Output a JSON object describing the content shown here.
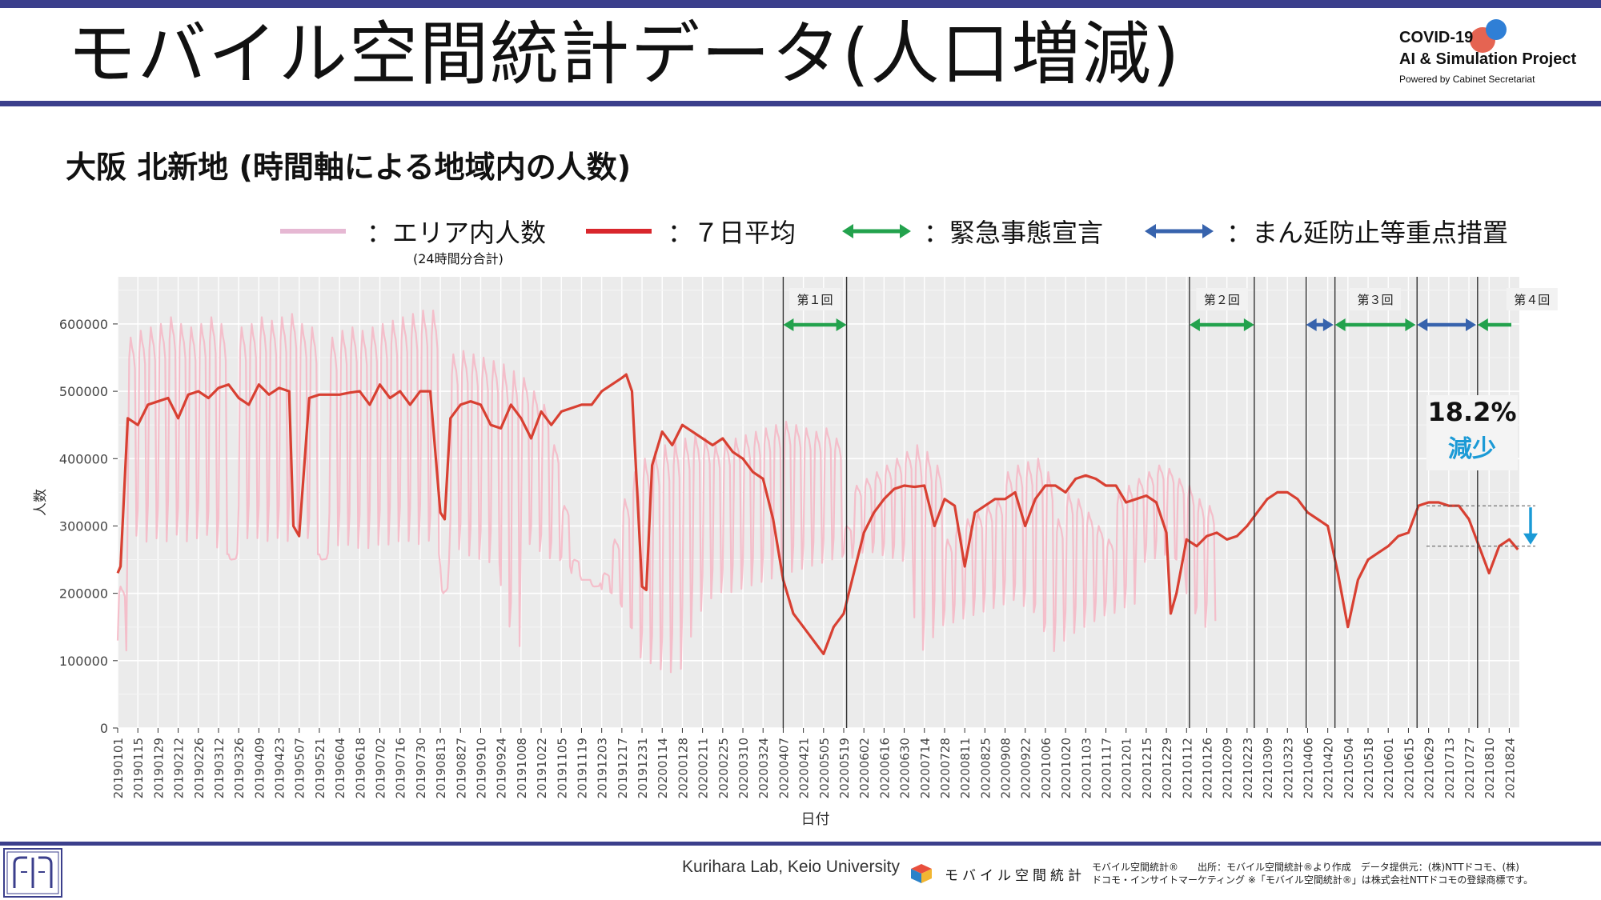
{
  "header": {
    "title": "モバイル空間統計データ(人口増減)",
    "brand_line1": "COVID-19",
    "brand_line2": "AI & Simulation Project",
    "brand_line3": "Powered by Cabinet Secretariat"
  },
  "subtitle": "大阪 北新地 (時間軸による地域内の人数)",
  "legend": {
    "items": [
      {
        "label": "：エリア内人数",
        "note": "(24時間分合計)",
        "color": "#e6b8d3"
      },
      {
        "label": "：７日平均",
        "color": "#d9262c"
      },
      {
        "label": "：緊急事態宣言",
        "color": "#23a24d"
      },
      {
        "label": "：まん延防止等重点措置",
        "color": "#3763ad"
      }
    ]
  },
  "annotation": {
    "percent": "18.2%",
    "label": "減少"
  },
  "footer": {
    "lab": "Kurihara Lab, Keio University",
    "logo_text": "モバイル空間統計",
    "note_line1": "モバイル空間統計®　　出所：モバイル空間統計®より作成　データ提供元：(株)NTTドコモ、(株)",
    "note_line2": "ドコモ・インサイトマーケティング ※「モバイル空間統計®」は株式会社NTTドコモの登録商標です。"
  },
  "colors": {
    "daily": "#f6b6c4",
    "avg": "#d84032",
    "emergency": "#23a24d",
    "priority": "#3763ad",
    "accent_blue": "#1b9ad6",
    "brand_navy": "#3b3f8c"
  },
  "chart_data": {
    "type": "line",
    "xlabel": "日付",
    "ylabel": "人数",
    "ylim": [
      0,
      670000
    ],
    "yticks": [
      0,
      100000,
      200000,
      300000,
      400000,
      500000,
      600000
    ],
    "ytick_labels": [
      "0",
      "100000",
      "200000",
      "300000",
      "400000",
      "500000",
      "600000"
    ],
    "grid": true,
    "x_start": "20190101",
    "x_end": "20210831",
    "xtick_labels": [
      "20190101",
      "20190115",
      "20190129",
      "20190212",
      "20190226",
      "20190312",
      "20190326",
      "20190409",
      "20190423",
      "20190507",
      "20190521",
      "20190604",
      "20190618",
      "20190702",
      "20190716",
      "20190730",
      "20190813",
      "20190827",
      "20190910",
      "20190924",
      "20191008",
      "20191022",
      "20191105",
      "20191119",
      "20191203",
      "20191217",
      "20191231",
      "20200114",
      "20200128",
      "20200211",
      "20200225",
      "20200310",
      "20200324",
      "20200407",
      "20200421",
      "20200505",
      "20200519",
      "20200602",
      "20200616",
      "20200630",
      "20200714",
      "20200728",
      "20200811",
      "20200825",
      "20200908",
      "20200922",
      "20201006",
      "20201020",
      "20201103",
      "20201117",
      "20201201",
      "20201215",
      "20201229",
      "20210112",
      "20210126",
      "20210209",
      "20210223",
      "20210309",
      "20210323",
      "20210406",
      "20210420",
      "20210504",
      "20210518",
      "20210601",
      "20210615",
      "20210629",
      "20210713",
      "20210727",
      "20210810",
      "20210824"
    ],
    "series": [
      {
        "name": "７日平均",
        "x": [
          "20190101",
          "20190103",
          "20190108",
          "20190115",
          "20190122",
          "20190129",
          "20190205",
          "20190212",
          "20190219",
          "20190226",
          "20190305",
          "20190312",
          "20190319",
          "20190326",
          "20190402",
          "20190409",
          "20190416",
          "20190423",
          "20190430",
          "20190503",
          "20190507",
          "20190514",
          "20190521",
          "20190528",
          "20190604",
          "20190611",
          "20190618",
          "20190625",
          "20190702",
          "20190709",
          "20190716",
          "20190723",
          "20190730",
          "20190806",
          "20190813",
          "20190816",
          "20190820",
          "20190827",
          "20190903",
          "20190910",
          "20190917",
          "20190924",
          "20191001",
          "20191008",
          "20191015",
          "20191022",
          "20191029",
          "20191105",
          "20191112",
          "20191119",
          "20191126",
          "20191203",
          "20191210",
          "20191217",
          "20191220",
          "20191224",
          "20191231",
          "20200103",
          "20200107",
          "20200114",
          "20200121",
          "20200128",
          "20200204",
          "20200211",
          "20200218",
          "20200225",
          "20200303",
          "20200310",
          "20200317",
          "20200324",
          "20200331",
          "20200407",
          "20200414",
          "20200421",
          "20200428",
          "20200505",
          "20200512",
          "20200519",
          "20200526",
          "20200602",
          "20200609",
          "20200616",
          "20200623",
          "20200630",
          "20200707",
          "20200714",
          "20200721",
          "20200728",
          "20200804",
          "20200811",
          "20200818",
          "20200825",
          "20200901",
          "20200908",
          "20200915",
          "20200922",
          "20200929",
          "20201006",
          "20201013",
          "20201020",
          "20201027",
          "20201103",
          "20201110",
          "20201117",
          "20201124",
          "20201201",
          "20201208",
          "20201215",
          "20201222",
          "20201229",
          "20210101",
          "20210105",
          "20210112",
          "20210119",
          "20210126",
          "20210202",
          "20210209",
          "20210216",
          "20210223",
          "20210302",
          "20210309",
          "20210316",
          "20210323",
          "20210330",
          "20210406",
          "20210413",
          "20210420",
          "20210427",
          "20210504",
          "20210511",
          "20210518",
          "20210525",
          "20210601",
          "20210608",
          "20210615",
          "20210622",
          "20210629",
          "20210706",
          "20210713",
          "20210720",
          "20210727",
          "20210803",
          "20210810",
          "20210817",
          "20210824",
          "20210830"
        ],
        "y": [
          230000,
          240000,
          460000,
          450000,
          480000,
          485000,
          490000,
          460000,
          495000,
          500000,
          490000,
          505000,
          510000,
          490000,
          480000,
          510000,
          495000,
          505000,
          500000,
          300000,
          285000,
          490000,
          495000,
          495000,
          495000,
          498000,
          500000,
          480000,
          510000,
          490000,
          500000,
          480000,
          500000,
          500000,
          320000,
          310000,
          460000,
          480000,
          485000,
          480000,
          450000,
          445000,
          480000,
          460000,
          430000,
          470000,
          450000,
          470000,
          475000,
          480000,
          480000,
          500000,
          510000,
          520000,
          525000,
          500000,
          210000,
          205000,
          390000,
          440000,
          420000,
          450000,
          440000,
          430000,
          420000,
          430000,
          410000,
          400000,
          380000,
          370000,
          310000,
          220000,
          170000,
          150000,
          130000,
          110000,
          150000,
          170000,
          230000,
          290000,
          320000,
          340000,
          355000,
          360000,
          358000,
          360000,
          300000,
          340000,
          330000,
          240000,
          320000,
          330000,
          340000,
          340000,
          350000,
          300000,
          340000,
          360000,
          360000,
          350000,
          370000,
          375000,
          370000,
          360000,
          360000,
          335000,
          340000,
          345000,
          335000,
          290000,
          170000,
          200000,
          280000,
          270000,
          285000,
          290000,
          280000,
          285000,
          300000,
          320000,
          340000,
          350000,
          350000,
          340000,
          320000,
          310000,
          300000,
          230000,
          150000,
          220000,
          250000,
          260000,
          270000,
          285000,
          290000,
          330000,
          335000,
          335000,
          330000,
          330000,
          310000,
          270000,
          230000,
          270000,
          280000,
          265000
        ]
      },
      {
        "name": "エリア内人数",
        "weekly_low": [
          110000,
          270000,
          260000,
          265000,
          260000,
          270000,
          260000,
          265000,
          270000,
          250000,
          240000,
          260000,
          265000,
          265000,
          260000,
          265000,
          260000,
          270000,
          265000,
          240000,
          260000,
          255000,
          255000,
          250000,
          250000,
          255000,
          255000,
          260000,
          260000,
          255000,
          260000,
          240000,
          250000,
          250000,
          240000,
          235000,
          230000,
          230000,
          130000,
          100000,
          260000,
          250000,
          240000,
          240000,
          235000,
          225000,
          220000,
          215000,
          200000,
          180000,
          140000,
          90000,
          80000,
          70000,
          65000,
          70000,
          120000,
          160000,
          180000,
          190000,
          190000,
          195000,
          200000,
          205000,
          210000,
          215000,
          220000,
          225000,
          230000,
          235000,
          240000,
          245000,
          250000,
          255000,
          255000,
          250000,
          245000,
          240000,
          240000,
          100000,
          120000,
          140000,
          150000,
          155000,
          160000,
          165000,
          170000,
          175000,
          180000,
          170000,
          160000,
          130000,
          100000,
          120000,
          130000,
          140000,
          150000,
          160000,
          165000,
          170000,
          175000,
          240000,
          245000,
          250000,
          245000,
          220000,
          160000,
          140000,
          150000
        ],
        "weekly_high": [
          210000,
          580000,
          590000,
          595000,
          600000,
          610000,
          600000,
          595000,
          600000,
          610000,
          600000,
          250000,
          595000,
          600000,
          610000,
          605000,
          610000,
          615000,
          600000,
          595000,
          250000,
          580000,
          590000,
          595000,
          590000,
          595000,
          600000,
          605000,
          610000,
          615000,
          620000,
          620000,
          200000,
          555000,
          560000,
          555000,
          550000,
          545000,
          540000,
          530000,
          520000,
          500000,
          480000,
          420000,
          330000,
          250000,
          220000,
          210000,
          230000,
          280000,
          340000,
          380000,
          400000,
          410000,
          420000,
          425000,
          430000,
          435000,
          430000,
          420000,
          425000,
          430000,
          435000,
          440000,
          445000,
          450000,
          455000,
          450000,
          445000,
          440000,
          445000,
          430000,
          300000,
          360000,
          370000,
          380000,
          390000,
          400000,
          410000,
          420000,
          410000,
          390000,
          280000,
          300000,
          310000,
          320000,
          330000,
          340000,
          380000,
          390000,
          395000,
          400000,
          380000,
          310000,
          350000,
          340000,
          320000,
          300000,
          280000,
          350000,
          360000,
          370000,
          380000,
          390000,
          385000,
          370000,
          360000,
          340000,
          330000
        ]
      }
    ],
    "periods": [
      {
        "type": "emergency",
        "label": "第１回",
        "start": "20200407",
        "end": "20200521"
      },
      {
        "type": "emergency",
        "label": "第２回",
        "start": "20210114",
        "end": "20210228"
      },
      {
        "type": "priority",
        "label": "",
        "start": "20210405",
        "end": "20210424"
      },
      {
        "type": "emergency",
        "label": "第３回",
        "start": "20210425",
        "end": "20210620"
      },
      {
        "type": "priority",
        "label": "",
        "start": "20210621",
        "end": "20210801"
      },
      {
        "type": "emergency",
        "label": "第４回",
        "start": "20210802",
        "end": "20210831"
      }
    ],
    "reference_lines": [
      330000,
      270000
    ]
  }
}
